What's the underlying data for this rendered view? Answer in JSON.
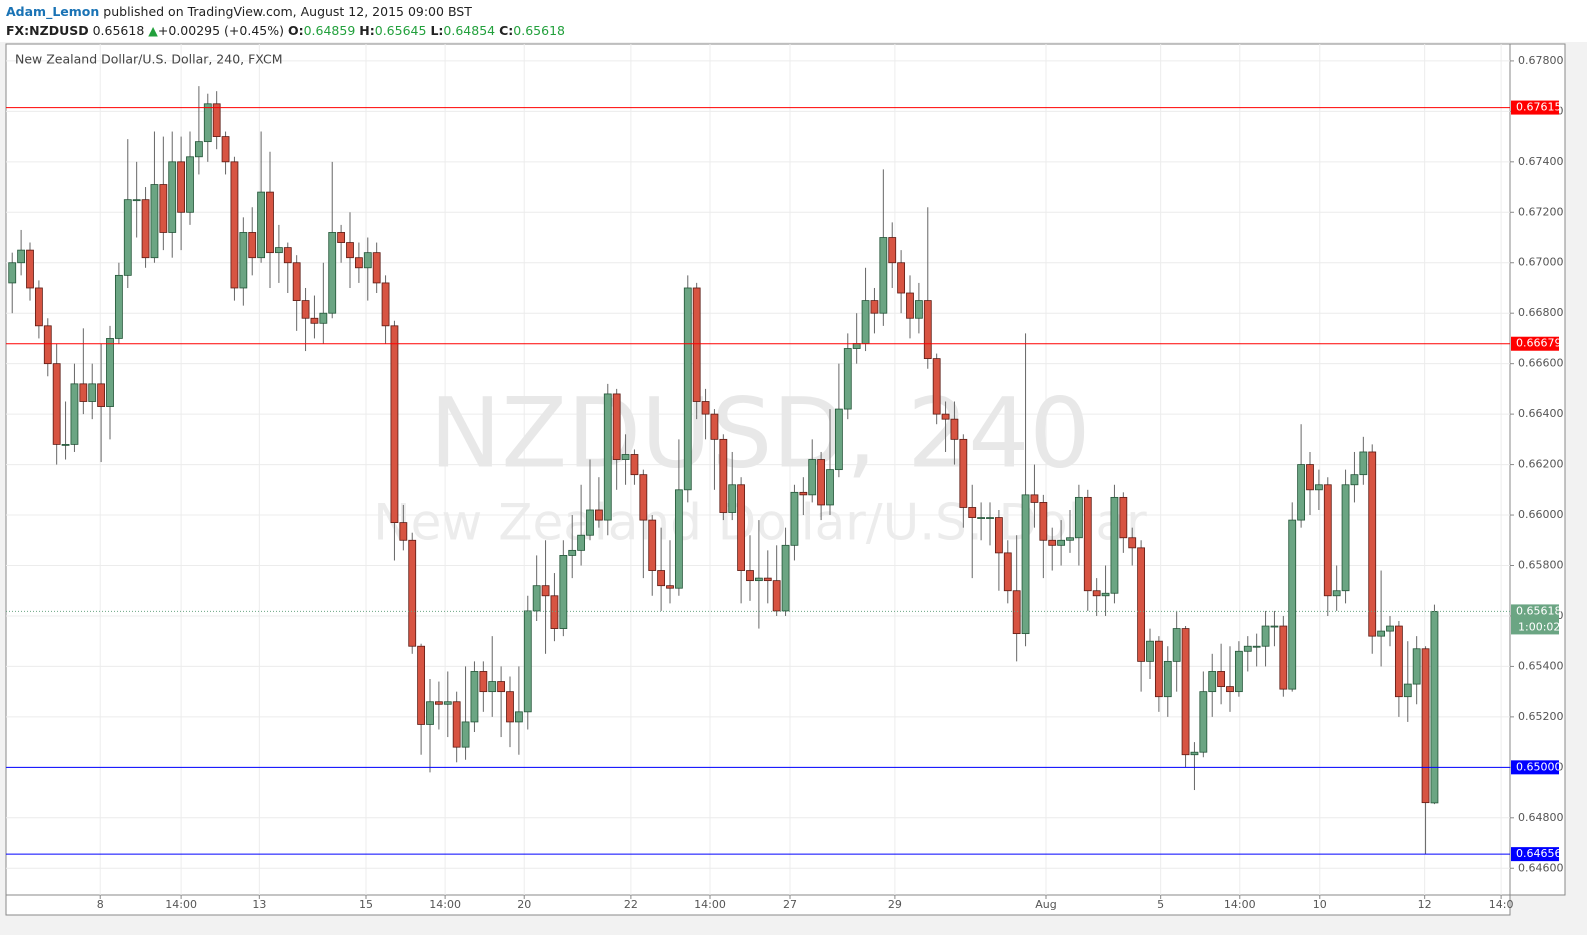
{
  "header": {
    "author": "Adam_Lemon",
    "published": "published on TradingView.com, August 12, 2015 09:00 BST",
    "symbol": "FX:NZDUSD",
    "price": "0.65618",
    "arrow": "▲",
    "change": "+0.00295 (+0.45%)",
    "o_label": "O:",
    "o": "0.64859",
    "h_label": "H:",
    "h": "0.65645",
    "l_label": "L:",
    "l": "0.64854",
    "c_label": "C:",
    "c": "0.65618"
  },
  "chart_data": {
    "type": "candlestick",
    "title": "New Zealand Dollar/U.S. Dollar, 240, FXCM",
    "watermark": "NZDUSD, 240",
    "watermark_sub": "New Zealand Dollar/U.S. Dollar",
    "up_color": "#6ba583",
    "down_color": "#d75442",
    "grid": true,
    "ylim": [
      0.64494,
      0.67867
    ],
    "yticks": [
      {
        "value": 0.646,
        "label": "0.64600"
      },
      {
        "value": 0.648,
        "label": "0.64800"
      },
      {
        "value": 0.65,
        "label": "0.65000"
      },
      {
        "value": 0.652,
        "label": "0.65200"
      },
      {
        "value": 0.654,
        "label": "0.65400"
      },
      {
        "value": 0.656,
        "label": "0.65600"
      },
      {
        "value": 0.658,
        "label": "0.65800"
      },
      {
        "value": 0.66,
        "label": "0.66000"
      },
      {
        "value": 0.662,
        "label": "0.66200"
      },
      {
        "value": 0.664,
        "label": "0.66400"
      },
      {
        "value": 0.666,
        "label": "0.66600"
      },
      {
        "value": 0.668,
        "label": "0.66800"
      },
      {
        "value": 0.67,
        "label": "0.67000"
      },
      {
        "value": 0.672,
        "label": "0.67200"
      },
      {
        "value": 0.674,
        "label": "0.67400"
      },
      {
        "value": 0.676,
        "label": "0.67600"
      },
      {
        "value": 0.678,
        "label": "0.67800"
      }
    ],
    "xlim": [
      -0.7,
      168.5
    ],
    "xticks": [
      {
        "value": 9.9,
        "label": "8"
      },
      {
        "value": 19,
        "label": "14:00"
      },
      {
        "value": 27.8,
        "label": "13"
      },
      {
        "value": 39.8,
        "label": "15"
      },
      {
        "value": 48.7,
        "label": "14:00"
      },
      {
        "value": 57.6,
        "label": "20"
      },
      {
        "value": 69.6,
        "label": "22"
      },
      {
        "value": 78.5,
        "label": "14:00"
      },
      {
        "value": 87.5,
        "label": "27"
      },
      {
        "value": 99.3,
        "label": "29"
      },
      {
        "value": 116.3,
        "label": "Aug"
      },
      {
        "value": 129.2,
        "label": "5"
      },
      {
        "value": 138.1,
        "label": "14:00"
      },
      {
        "value": 147.1,
        "label": "10"
      },
      {
        "value": 158.9,
        "label": "12"
      },
      {
        "value": 167.5,
        "label": "14:0"
      }
    ],
    "levels": [
      {
        "value": 0.67615,
        "label": "0.67615",
        "color": "#ff0000"
      },
      {
        "value": 0.66679,
        "label": "0.66679",
        "color": "#ff0000"
      },
      {
        "value": 0.65,
        "label": "0.65000",
        "color": "#0000ff"
      },
      {
        "value": 0.64656,
        "label": "0.64656",
        "color": "#0000ff"
      }
    ],
    "last_price": {
      "value": 0.65618,
      "label": "0.65618",
      "countdown": "1:00:02",
      "color": "#6ba583"
    },
    "ohlc": [
      [
        0.6692,
        0.6704,
        0.668,
        0.67
      ],
      [
        0.67,
        0.6713,
        0.6695,
        0.6705
      ],
      [
        0.6705,
        0.6708,
        0.6685,
        0.669
      ],
      [
        0.669,
        0.6693,
        0.667,
        0.6675
      ],
      [
        0.6675,
        0.6678,
        0.6655,
        0.666
      ],
      [
        0.666,
        0.6668,
        0.662,
        0.6628
      ],
      [
        0.6628,
        0.6645,
        0.6622,
        0.6628
      ],
      [
        0.6628,
        0.666,
        0.6625,
        0.6652
      ],
      [
        0.6652,
        0.6674,
        0.664,
        0.6645
      ],
      [
        0.6645,
        0.666,
        0.6638,
        0.6652
      ],
      [
        0.6652,
        0.6668,
        0.6621,
        0.6643
      ],
      [
        0.6643,
        0.6675,
        0.663,
        0.667
      ],
      [
        0.667,
        0.67,
        0.6668,
        0.6695
      ],
      [
        0.6695,
        0.6749,
        0.669,
        0.6725
      ],
      [
        0.6725,
        0.674,
        0.671,
        0.6725
      ],
      [
        0.6725,
        0.673,
        0.6698,
        0.6702
      ],
      [
        0.6702,
        0.6752,
        0.67,
        0.6731
      ],
      [
        0.6731,
        0.675,
        0.6705,
        0.6712
      ],
      [
        0.6712,
        0.6752,
        0.6702,
        0.674
      ],
      [
        0.674,
        0.675,
        0.6705,
        0.672
      ],
      [
        0.672,
        0.6752,
        0.6715,
        0.6742
      ],
      [
        0.6742,
        0.677,
        0.6735,
        0.6748
      ],
      [
        0.6748,
        0.6767,
        0.674,
        0.6763
      ],
      [
        0.6763,
        0.6768,
        0.6745,
        0.675
      ],
      [
        0.675,
        0.6752,
        0.6735,
        0.674
      ],
      [
        0.674,
        0.6742,
        0.6685,
        0.669
      ],
      [
        0.669,
        0.6718,
        0.6683,
        0.6712
      ],
      [
        0.6712,
        0.6722,
        0.6695,
        0.6702
      ],
      [
        0.6702,
        0.6752,
        0.67,
        0.6728
      ],
      [
        0.6728,
        0.6744,
        0.669,
        0.6704
      ],
      [
        0.6704,
        0.6715,
        0.6692,
        0.6706
      ],
      [
        0.6706,
        0.6708,
        0.6688,
        0.67
      ],
      [
        0.67,
        0.6703,
        0.6673,
        0.6685
      ],
      [
        0.6685,
        0.669,
        0.6665,
        0.6678
      ],
      [
        0.6678,
        0.6687,
        0.667,
        0.6676
      ],
      [
        0.6676,
        0.67,
        0.6668,
        0.668
      ],
      [
        0.668,
        0.674,
        0.6678,
        0.6712
      ],
      [
        0.6712,
        0.6715,
        0.67,
        0.6708
      ],
      [
        0.6708,
        0.672,
        0.669,
        0.6702
      ],
      [
        0.6702,
        0.6708,
        0.6692,
        0.6698
      ],
      [
        0.6698,
        0.671,
        0.6685,
        0.6704
      ],
      [
        0.6704,
        0.6708,
        0.6688,
        0.6692
      ],
      [
        0.6692,
        0.6695,
        0.6668,
        0.6675
      ],
      [
        0.6675,
        0.6677,
        0.6582,
        0.6597
      ],
      [
        0.6597,
        0.6604,
        0.6586,
        0.659
      ],
      [
        0.659,
        0.6593,
        0.6545,
        0.6548
      ],
      [
        0.6548,
        0.6549,
        0.6505,
        0.6517
      ],
      [
        0.6517,
        0.6535,
        0.6498,
        0.6526
      ],
      [
        0.6526,
        0.6534,
        0.6515,
        0.6525
      ],
      [
        0.6525,
        0.6538,
        0.6512,
        0.6526
      ],
      [
        0.6526,
        0.653,
        0.6502,
        0.6508
      ],
      [
        0.6508,
        0.654,
        0.6503,
        0.6518
      ],
      [
        0.6518,
        0.6542,
        0.6514,
        0.6538
      ],
      [
        0.6538,
        0.6542,
        0.6522,
        0.653
      ],
      [
        0.653,
        0.6552,
        0.652,
        0.6534
      ],
      [
        0.6534,
        0.654,
        0.6512,
        0.653
      ],
      [
        0.653,
        0.6536,
        0.6508,
        0.6518
      ],
      [
        0.6518,
        0.654,
        0.6505,
        0.6522
      ],
      [
        0.6522,
        0.6568,
        0.6515,
        0.6562
      ],
      [
        0.6562,
        0.6584,
        0.6558,
        0.6572
      ],
      [
        0.6572,
        0.659,
        0.6545,
        0.6568
      ],
      [
        0.6568,
        0.6577,
        0.655,
        0.6555
      ],
      [
        0.6555,
        0.659,
        0.6552,
        0.6584
      ],
      [
        0.6584,
        0.66,
        0.6575,
        0.6586
      ],
      [
        0.6586,
        0.6612,
        0.658,
        0.6592
      ],
      [
        0.6592,
        0.6622,
        0.659,
        0.6602
      ],
      [
        0.6602,
        0.6615,
        0.6595,
        0.6598
      ],
      [
        0.6598,
        0.6652,
        0.6592,
        0.6648
      ],
      [
        0.6648,
        0.665,
        0.661,
        0.6622
      ],
      [
        0.6622,
        0.6632,
        0.6612,
        0.6624
      ],
      [
        0.6624,
        0.6626,
        0.6612,
        0.6616
      ],
      [
        0.6616,
        0.6618,
        0.6575,
        0.6598
      ],
      [
        0.6598,
        0.66,
        0.6568,
        0.6578
      ],
      [
        0.6578,
        0.6595,
        0.6562,
        0.6572
      ],
      [
        0.6572,
        0.659,
        0.6565,
        0.6571
      ],
      [
        0.6571,
        0.663,
        0.6568,
        0.661
      ],
      [
        0.661,
        0.6695,
        0.6605,
        0.669
      ],
      [
        0.669,
        0.6692,
        0.6638,
        0.6645
      ],
      [
        0.6645,
        0.665,
        0.663,
        0.664
      ],
      [
        0.664,
        0.6642,
        0.661,
        0.663
      ],
      [
        0.663,
        0.6632,
        0.6598,
        0.6601
      ],
      [
        0.6601,
        0.6625,
        0.6598,
        0.6612
      ],
      [
        0.6612,
        0.6615,
        0.6565,
        0.6578
      ],
      [
        0.6578,
        0.6592,
        0.6566,
        0.6574
      ],
      [
        0.6574,
        0.6598,
        0.6555,
        0.6575
      ],
      [
        0.6575,
        0.6586,
        0.6565,
        0.6574
      ],
      [
        0.6574,
        0.6588,
        0.656,
        0.6562
      ],
      [
        0.6562,
        0.6595,
        0.656,
        0.6588
      ],
      [
        0.6588,
        0.6612,
        0.6582,
        0.6609
      ],
      [
        0.6609,
        0.6615,
        0.66,
        0.6608
      ],
      [
        0.6608,
        0.663,
        0.6605,
        0.6622
      ],
      [
        0.6622,
        0.6625,
        0.6598,
        0.6604
      ],
      [
        0.6604,
        0.6642,
        0.66,
        0.6618
      ],
      [
        0.6618,
        0.666,
        0.6615,
        0.6642
      ],
      [
        0.6642,
        0.6672,
        0.6638,
        0.6666
      ],
      [
        0.6666,
        0.668,
        0.666,
        0.6668
      ],
      [
        0.6668,
        0.6698,
        0.6665,
        0.6685
      ],
      [
        0.6685,
        0.669,
        0.6672,
        0.668
      ],
      [
        0.668,
        0.6737,
        0.6675,
        0.671
      ],
      [
        0.671,
        0.6716,
        0.669,
        0.67
      ],
      [
        0.67,
        0.6705,
        0.668,
        0.6688
      ],
      [
        0.6688,
        0.6695,
        0.667,
        0.6678
      ],
      [
        0.6678,
        0.6692,
        0.6672,
        0.6685
      ],
      [
        0.6685,
        0.6722,
        0.6658,
        0.6662
      ],
      [
        0.6662,
        0.6664,
        0.6636,
        0.664
      ],
      [
        0.664,
        0.6645,
        0.6625,
        0.6638
      ],
      [
        0.6638,
        0.6645,
        0.662,
        0.663
      ],
      [
        0.663,
        0.6632,
        0.6595,
        0.6603
      ],
      [
        0.6603,
        0.6612,
        0.6575,
        0.6599
      ],
      [
        0.6599,
        0.6605,
        0.659,
        0.6599
      ],
      [
        0.6599,
        0.6605,
        0.6588,
        0.6599
      ],
      [
        0.6599,
        0.6602,
        0.657,
        0.6585
      ],
      [
        0.6585,
        0.659,
        0.6565,
        0.657
      ],
      [
        0.657,
        0.6592,
        0.6542,
        0.6553
      ],
      [
        0.6553,
        0.6672,
        0.6548,
        0.6608
      ],
      [
        0.6608,
        0.662,
        0.6595,
        0.6605
      ],
      [
        0.6605,
        0.6608,
        0.6575,
        0.659
      ],
      [
        0.659,
        0.6595,
        0.6578,
        0.6588
      ],
      [
        0.6588,
        0.6598,
        0.658,
        0.659
      ],
      [
        0.659,
        0.6602,
        0.6585,
        0.6591
      ],
      [
        0.6591,
        0.6612,
        0.658,
        0.6607
      ],
      [
        0.6607,
        0.661,
        0.6562,
        0.657
      ],
      [
        0.657,
        0.6575,
        0.656,
        0.6568
      ],
      [
        0.6568,
        0.658,
        0.656,
        0.6569
      ],
      [
        0.6569,
        0.6612,
        0.6565,
        0.6607
      ],
      [
        0.6607,
        0.6609,
        0.6585,
        0.6591
      ],
      [
        0.6591,
        0.6595,
        0.658,
        0.6587
      ],
      [
        0.6587,
        0.659,
        0.653,
        0.6542
      ],
      [
        0.6542,
        0.6555,
        0.6535,
        0.655
      ],
      [
        0.655,
        0.6552,
        0.6522,
        0.6528
      ],
      [
        0.6528,
        0.6548,
        0.652,
        0.6542
      ],
      [
        0.6542,
        0.6562,
        0.653,
        0.6555
      ],
      [
        0.6555,
        0.6556,
        0.65,
        0.6505
      ],
      [
        0.6505,
        0.651,
        0.6491,
        0.6506
      ],
      [
        0.6506,
        0.6538,
        0.6504,
        0.653
      ],
      [
        0.653,
        0.6545,
        0.652,
        0.6538
      ],
      [
        0.6538,
        0.6549,
        0.6525,
        0.6532
      ],
      [
        0.6532,
        0.6548,
        0.6522,
        0.653
      ],
      [
        0.653,
        0.655,
        0.6528,
        0.6546
      ],
      [
        0.6546,
        0.6552,
        0.6538,
        0.6548
      ],
      [
        0.6548,
        0.6553,
        0.654,
        0.6548
      ],
      [
        0.6548,
        0.6562,
        0.654,
        0.6556
      ],
      [
        0.6556,
        0.6562,
        0.6548,
        0.6556
      ],
      [
        0.6556,
        0.656,
        0.6528,
        0.6531
      ],
      [
        0.6531,
        0.6605,
        0.653,
        0.6598
      ],
      [
        0.6598,
        0.6636,
        0.6595,
        0.662
      ],
      [
        0.662,
        0.6625,
        0.66,
        0.661
      ],
      [
        0.661,
        0.6618,
        0.6602,
        0.6612
      ],
      [
        0.6612,
        0.6615,
        0.656,
        0.6568
      ],
      [
        0.6568,
        0.658,
        0.6562,
        0.657
      ],
      [
        0.657,
        0.6618,
        0.6565,
        0.6612
      ],
      [
        0.6612,
        0.6625,
        0.6605,
        0.6616
      ],
      [
        0.6616,
        0.6631,
        0.6612,
        0.6625
      ],
      [
        0.6625,
        0.6628,
        0.6545,
        0.6552
      ],
      [
        0.6552,
        0.6578,
        0.654,
        0.6554
      ],
      [
        0.6554,
        0.656,
        0.6548,
        0.6556
      ],
      [
        0.6556,
        0.6558,
        0.652,
        0.6528
      ],
      [
        0.6528,
        0.655,
        0.6518,
        0.6533
      ],
      [
        0.6533,
        0.6552,
        0.6525,
        0.6547
      ],
      [
        0.6547,
        0.6548,
        0.64656,
        0.6486
      ],
      [
        0.64859,
        0.65645,
        0.64854,
        0.65618
      ]
    ]
  }
}
